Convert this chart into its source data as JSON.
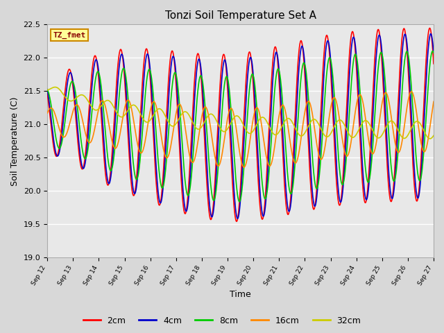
{
  "title": "Tonzi Soil Temperature Set A",
  "xlabel": "Time",
  "ylabel": "Soil Temperature (C)",
  "ylim": [
    19.0,
    22.5
  ],
  "colors": {
    "2cm": "#ff0000",
    "4cm": "#0000cc",
    "8cm": "#00cc00",
    "16cm": "#ff8800",
    "32cm": "#cccc00"
  },
  "legend_labels": [
    "2cm",
    "4cm",
    "8cm",
    "16cm",
    "32cm"
  ],
  "annotation_text": "TZ_fmet",
  "annotation_box_color": "#ffff99",
  "annotation_box_edge": "#cc8800",
  "annotation_text_color": "#880000",
  "x_tick_labels": [
    "Sep 12",
    "Sep 13",
    "Sep 14",
    "Sep 15",
    "Sep 16",
    "Sep 17",
    "Sep 18",
    "Sep 19",
    "Sep 20",
    "Sep 21",
    "Sep 22",
    "Sep 23",
    "Sep 24",
    "Sep 25",
    "Sep 26",
    "Sep 27"
  ],
  "background_color": "#d8d8d8",
  "plot_bg_color": "#e8e8e8",
  "grid_color": "#ffffff",
  "num_days": 15,
  "samples_per_day": 96
}
